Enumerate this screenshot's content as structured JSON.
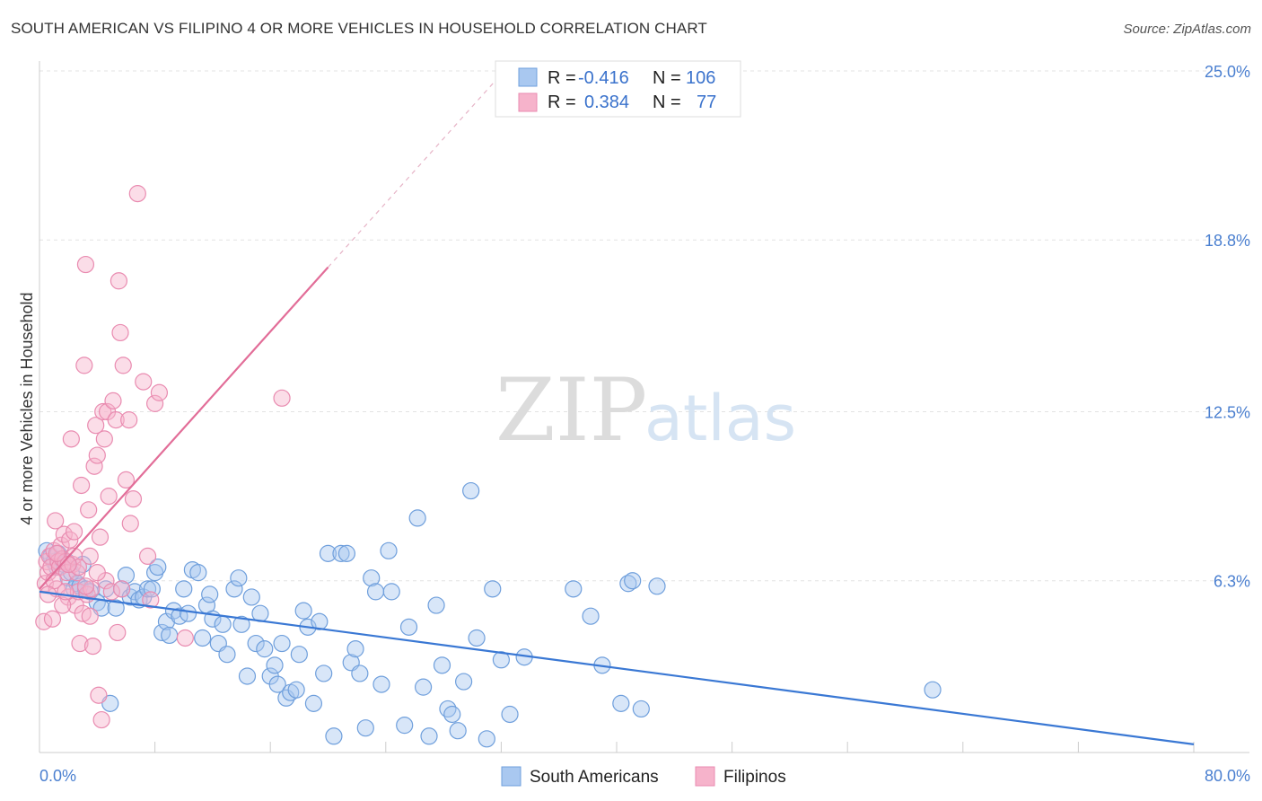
{
  "title": "SOUTH AMERICAN VS FILIPINO 4 OR MORE VEHICLES IN HOUSEHOLD CORRELATION CHART",
  "source": "Source: ZipAtlas.com",
  "watermark": {
    "zip": "ZIP",
    "atlas": "atlas"
  },
  "colors": {
    "blue_fill": "#a9c8f0",
    "blue_stroke": "#6f9fdc",
    "blue_line": "#3a78d4",
    "pink_fill": "#f6b3cb",
    "pink_stroke": "#e98bb0",
    "pink_line": "#e26d98",
    "grid": "#e3e3e3",
    "tick": "#4a7fd0"
  },
  "legend": {
    "r_label": "R =",
    "n_label": "N =",
    "rows": [
      {
        "r": "-0.416",
        "n": "106"
      },
      {
        "r": "0.384",
        "n": "77"
      }
    ]
  },
  "bottom_legend": [
    "South Americans",
    "Filipinos"
  ],
  "chart_data": {
    "type": "scatter",
    "xlabel": "",
    "ylabel": "4 or more Vehicles in Household",
    "xlim": [
      0,
      80
    ],
    "ylim": [
      0,
      25.0
    ],
    "x_tick_labels": {
      "0.0%": 0,
      "80.0%": 80
    },
    "y_tick_labels": {
      "6.3%": 6.3,
      "12.5%": 12.5,
      "18.8%": 18.8,
      "25.0%": 25.0
    },
    "grid": true,
    "series": [
      {
        "name": "South Americans",
        "trend": {
          "x": [
            0,
            80
          ],
          "y": [
            5.9,
            0.3
          ]
        },
        "points": [
          [
            0.5,
            7.4
          ],
          [
            0.8,
            7.2
          ],
          [
            1.0,
            7.0
          ],
          [
            1.2,
            6.8
          ],
          [
            1.3,
            7.3
          ],
          [
            1.5,
            7.1
          ],
          [
            1.7,
            6.9
          ],
          [
            1.9,
            7.0
          ],
          [
            2.0,
            6.4
          ],
          [
            2.2,
            6.6
          ],
          [
            2.4,
            6.0
          ],
          [
            2.6,
            6.2
          ],
          [
            2.8,
            6.1
          ],
          [
            3.0,
            6.9
          ],
          [
            3.2,
            6.0
          ],
          [
            3.5,
            5.9
          ],
          [
            4.0,
            5.5
          ],
          [
            4.3,
            5.3
          ],
          [
            4.6,
            6.0
          ],
          [
            4.9,
            1.8
          ],
          [
            5.3,
            5.3
          ],
          [
            5.7,
            6.0
          ],
          [
            6.0,
            6.5
          ],
          [
            6.3,
            5.7
          ],
          [
            6.6,
            5.9
          ],
          [
            6.9,
            5.6
          ],
          [
            7.2,
            5.7
          ],
          [
            7.5,
            6.0
          ],
          [
            7.8,
            6.0
          ],
          [
            8.0,
            6.6
          ],
          [
            8.2,
            6.8
          ],
          [
            8.5,
            4.4
          ],
          [
            8.8,
            4.8
          ],
          [
            9.0,
            4.3
          ],
          [
            9.3,
            5.2
          ],
          [
            9.7,
            5.0
          ],
          [
            10.0,
            6.0
          ],
          [
            10.3,
            5.1
          ],
          [
            10.6,
            6.7
          ],
          [
            11.0,
            6.6
          ],
          [
            11.3,
            4.2
          ],
          [
            11.6,
            5.4
          ],
          [
            11.8,
            5.8
          ],
          [
            12.0,
            4.9
          ],
          [
            12.4,
            4.0
          ],
          [
            12.7,
            4.7
          ],
          [
            13.0,
            3.6
          ],
          [
            13.5,
            6.0
          ],
          [
            13.8,
            6.4
          ],
          [
            14.0,
            4.7
          ],
          [
            14.4,
            2.8
          ],
          [
            14.7,
            5.7
          ],
          [
            15.0,
            4.0
          ],
          [
            15.3,
            5.1
          ],
          [
            15.6,
            3.8
          ],
          [
            16.0,
            2.8
          ],
          [
            16.3,
            3.2
          ],
          [
            16.5,
            2.5
          ],
          [
            16.8,
            4.0
          ],
          [
            17.1,
            2.0
          ],
          [
            17.4,
            2.2
          ],
          [
            17.8,
            2.3
          ],
          [
            18.0,
            3.6
          ],
          [
            18.3,
            5.2
          ],
          [
            18.6,
            4.6
          ],
          [
            19.0,
            1.8
          ],
          [
            19.4,
            4.8
          ],
          [
            19.7,
            2.9
          ],
          [
            20.0,
            7.3
          ],
          [
            20.4,
            0.6
          ],
          [
            20.9,
            7.3
          ],
          [
            21.3,
            7.3
          ],
          [
            21.6,
            3.3
          ],
          [
            21.9,
            3.8
          ],
          [
            22.2,
            2.9
          ],
          [
            22.6,
            0.9
          ],
          [
            23.0,
            6.4
          ],
          [
            23.3,
            5.9
          ],
          [
            23.7,
            2.5
          ],
          [
            24.2,
            7.4
          ],
          [
            24.4,
            5.9
          ],
          [
            25.3,
            1.0
          ],
          [
            25.6,
            4.6
          ],
          [
            26.2,
            8.6
          ],
          [
            26.6,
            2.4
          ],
          [
            27.0,
            0.6
          ],
          [
            27.5,
            5.4
          ],
          [
            27.9,
            3.2
          ],
          [
            28.3,
            1.6
          ],
          [
            28.6,
            1.4
          ],
          [
            29.0,
            0.8
          ],
          [
            29.4,
            2.6
          ],
          [
            29.9,
            9.6
          ],
          [
            30.3,
            4.2
          ],
          [
            31.0,
            0.5
          ],
          [
            31.4,
            6.0
          ],
          [
            32.0,
            3.4
          ],
          [
            32.6,
            1.4
          ],
          [
            33.6,
            3.5
          ],
          [
            37.0,
            6.0
          ],
          [
            38.2,
            5.0
          ],
          [
            39.0,
            3.2
          ],
          [
            40.3,
            1.8
          ],
          [
            40.8,
            6.2
          ],
          [
            41.1,
            6.3
          ],
          [
            41.7,
            1.6
          ],
          [
            42.8,
            6.1
          ],
          [
            61.9,
            2.3
          ]
        ]
      },
      {
        "name": "Filipinos",
        "trend": {
          "x": [
            0,
            20
          ],
          "y": [
            6.0,
            17.8
          ]
        },
        "points": [
          [
            0.3,
            4.8
          ],
          [
            0.4,
            6.2
          ],
          [
            0.5,
            7.0
          ],
          [
            0.6,
            6.6
          ],
          [
            0.7,
            7.2
          ],
          [
            0.8,
            6.8
          ],
          [
            0.9,
            4.9
          ],
          [
            1.0,
            7.4
          ],
          [
            1.1,
            8.5
          ],
          [
            1.2,
            6.0
          ],
          [
            1.3,
            7.0
          ],
          [
            1.4,
            6.8
          ],
          [
            1.5,
            7.6
          ],
          [
            1.6,
            7.1
          ],
          [
            1.7,
            8.0
          ],
          [
            1.8,
            7.0
          ],
          [
            1.9,
            6.6
          ],
          [
            2.0,
            5.7
          ],
          [
            2.1,
            7.8
          ],
          [
            2.2,
            11.5
          ],
          [
            2.3,
            6.9
          ],
          [
            2.4,
            7.2
          ],
          [
            2.5,
            5.4
          ],
          [
            2.6,
            6.6
          ],
          [
            2.7,
            5.9
          ],
          [
            2.8,
            4.0
          ],
          [
            2.9,
            9.8
          ],
          [
            3.0,
            5.1
          ],
          [
            3.1,
            14.2
          ],
          [
            3.2,
            17.9
          ],
          [
            3.3,
            5.8
          ],
          [
            3.4,
            8.9
          ],
          [
            3.5,
            7.2
          ],
          [
            3.6,
            6.0
          ],
          [
            3.7,
            3.9
          ],
          [
            3.8,
            10.5
          ],
          [
            3.9,
            12.0
          ],
          [
            4.0,
            10.9
          ],
          [
            4.1,
            2.1
          ],
          [
            4.2,
            7.9
          ],
          [
            4.3,
            1.2
          ],
          [
            4.4,
            12.5
          ],
          [
            4.5,
            11.5
          ],
          [
            4.6,
            6.3
          ],
          [
            4.7,
            12.5
          ],
          [
            4.8,
            9.4
          ],
          [
            5.0,
            5.9
          ],
          [
            5.1,
            12.9
          ],
          [
            5.3,
            12.2
          ],
          [
            5.4,
            4.4
          ],
          [
            5.5,
            17.3
          ],
          [
            5.6,
            15.4
          ],
          [
            5.7,
            6.0
          ],
          [
            5.8,
            14.2
          ],
          [
            6.0,
            10.0
          ],
          [
            6.2,
            12.2
          ],
          [
            6.3,
            8.4
          ],
          [
            6.5,
            9.3
          ],
          [
            6.8,
            20.5
          ],
          [
            7.2,
            13.6
          ],
          [
            7.5,
            7.2
          ],
          [
            7.7,
            5.6
          ],
          [
            8.0,
            12.8
          ],
          [
            8.3,
            13.2
          ],
          [
            10.1,
            4.2
          ],
          [
            16.8,
            13.0
          ],
          [
            1.0,
            6.3
          ],
          [
            1.6,
            5.4
          ],
          [
            2.4,
            8.1
          ],
          [
            2.7,
            6.8
          ],
          [
            3.2,
            6.1
          ],
          [
            3.5,
            5.0
          ],
          [
            4.0,
            6.6
          ],
          [
            1.2,
            7.3
          ],
          [
            0.6,
            5.8
          ],
          [
            2.0,
            6.9
          ],
          [
            1.8,
            5.9
          ]
        ]
      }
    ]
  }
}
